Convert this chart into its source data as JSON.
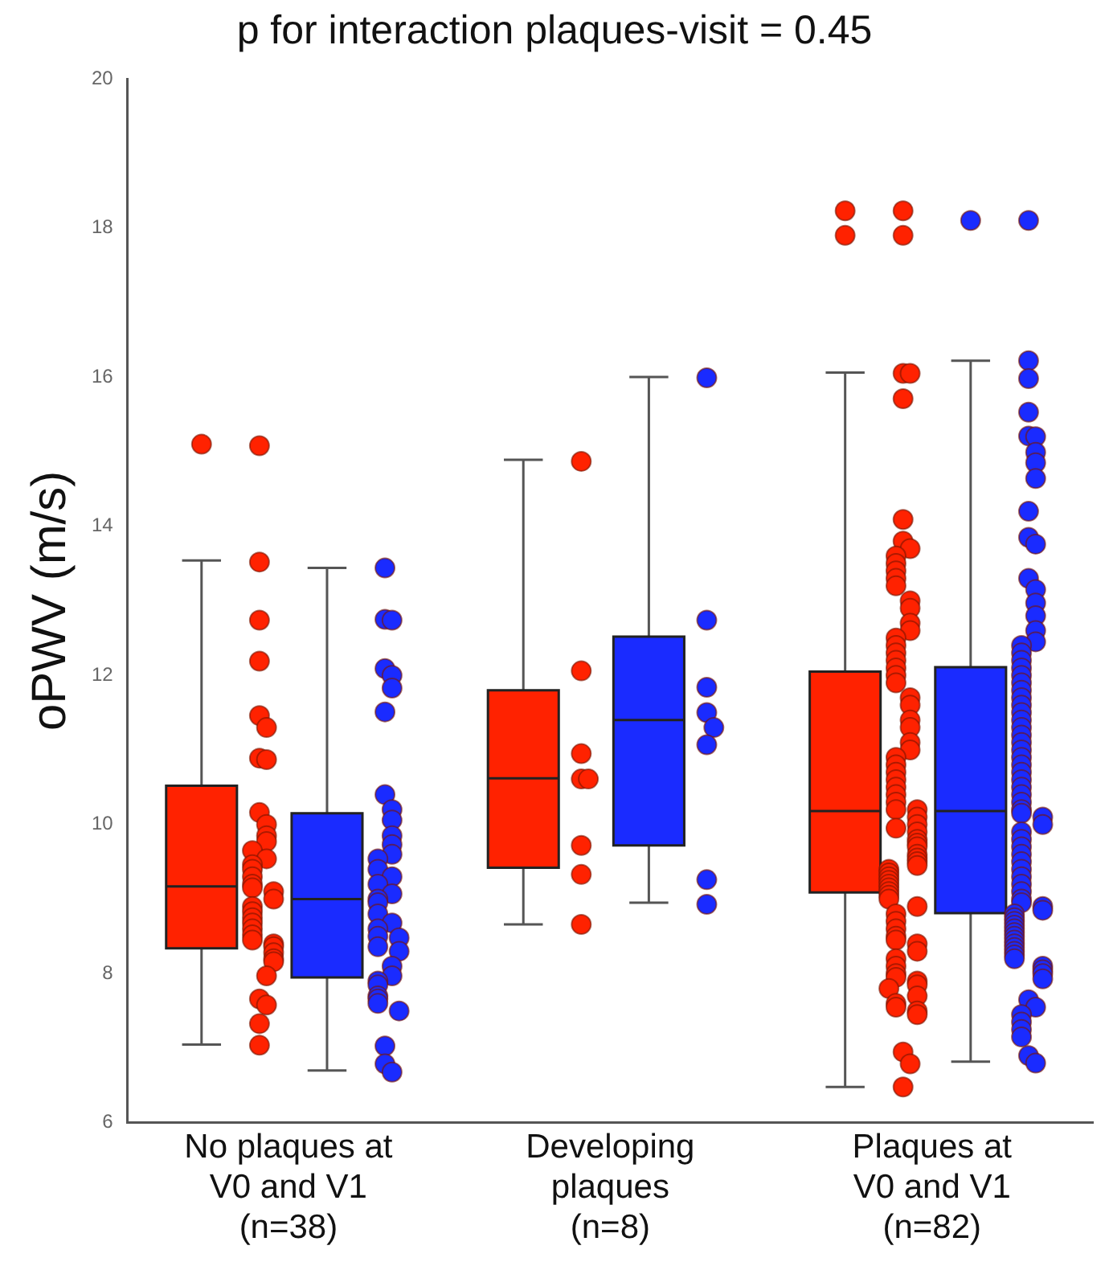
{
  "chart_data": {
    "type": "box",
    "title": "p for interaction plaques-visit = 0.45",
    "ylabel": "oPWV (m/s)",
    "categories": [
      "No plaques at\nV0 and V1\n(n=38)",
      "Developing\nplaques\n(n=8)",
      "Plaques at\nV0 and V1\n(n=82)"
    ],
    "ylim": [
      6,
      20
    ],
    "yticks": [
      6,
      8,
      10,
      12,
      14,
      16,
      18,
      20
    ],
    "grid": false,
    "legend": false,
    "marker": "circle",
    "series": [
      {
        "type": "box",
        "color": "#ff2200",
        "boxes": [
          {
            "low": 7.05,
            "q1": 8.34,
            "median": 9.17,
            "q3": 10.52,
            "high": 13.54,
            "outliers": [
              15.1
            ]
          },
          {
            "low": 8.66,
            "q1": 9.42,
            "median": 10.62,
            "q3": 11.8,
            "high": 14.89
          },
          {
            "low": 6.48,
            "q1": 9.09,
            "median": 10.18,
            "q3": 12.05,
            "high": 16.06,
            "outliers": [
              18.23,
              17.9
            ]
          }
        ]
      },
      {
        "type": "box",
        "color": "#1a2bff",
        "boxes": [
          {
            "low": 6.7,
            "q1": 7.95,
            "median": 9.0,
            "q3": 10.15,
            "high": 13.44
          },
          {
            "low": 8.95,
            "q1": 9.72,
            "median": 11.4,
            "q3": 12.52,
            "high": 16.0
          },
          {
            "low": 6.82,
            "q1": 8.81,
            "median": 10.18,
            "q3": 12.11,
            "high": 16.22,
            "outliers": [
              18.1
            ]
          }
        ]
      },
      {
        "type": "scatter",
        "color": "#ff2200",
        "x": [
          "No plaques at\nV0 and V1\n(n=38)",
          "No plaques at\nV0 and V1\n(n=38)",
          "No plaques at\nV0 and V1\n(n=38)",
          "No plaques at\nV0 and V1\n(n=38)",
          "No plaques at\nV0 and V1\n(n=38)",
          "No plaques at\nV0 and V1\n(n=38)",
          "No plaques at\nV0 and V1\n(n=38)",
          "No plaques at\nV0 and V1\n(n=38)",
          "No plaques at\nV0 and V1\n(n=38)",
          "No plaques at\nV0 and V1\n(n=38)",
          "No plaques at\nV0 and V1\n(n=38)",
          "No plaques at\nV0 and V1\n(n=38)",
          "No plaques at\nV0 and V1\n(n=38)",
          "No plaques at\nV0 and V1\n(n=38)",
          "No plaques at\nV0 and V1\n(n=38)",
          "No plaques at\nV0 and V1\n(n=38)",
          "No plaques at\nV0 and V1\n(n=38)",
          "No plaques at\nV0 and V1\n(n=38)",
          "No plaques at\nV0 and V1\n(n=38)",
          "No plaques at\nV0 and V1\n(n=38)",
          "No plaques at\nV0 and V1\n(n=38)",
          "No plaques at\nV0 and V1\n(n=38)",
          "No plaques at\nV0 and V1\n(n=38)",
          "No plaques at\nV0 and V1\n(n=38)",
          "No plaques at\nV0 and V1\n(n=38)",
          "No plaques at\nV0 and V1\n(n=38)",
          "No plaques at\nV0 and V1\n(n=38)",
          "No plaques at\nV0 and V1\n(n=38)",
          "No plaques at\nV0 and V1\n(n=38)",
          "No plaques at\nV0 and V1\n(n=38)",
          "No plaques at\nV0 and V1\n(n=38)",
          "No plaques at\nV0 and V1\n(n=38)",
          "No plaques at\nV0 and V1\n(n=38)",
          "No plaques at\nV0 and V1\n(n=38)",
          "No plaques at\nV0 and V1\n(n=38)",
          "No plaques at\nV0 and V1\n(n=38)",
          "No plaques at\nV0 and V1\n(n=38)",
          "No plaques at\nV0 and V1\n(n=38)",
          "Developing\nplaques\n(n=8)",
          "Developing\nplaques\n(n=8)",
          "Developing\nplaques\n(n=8)",
          "Developing\nplaques\n(n=8)",
          "Developing\nplaques\n(n=8)",
          "Developing\nplaques\n(n=8)",
          "Developing\nplaques\n(n=8)",
          "Developing\nplaques\n(n=8)",
          "Plaques at\nV0 and V1\n(n=82)",
          "Plaques at\nV0 and V1\n(n=82)",
          "Plaques at\nV0 and V1\n(n=82)",
          "Plaques at\nV0 and V1\n(n=82)",
          "Plaques at\nV0 and V1\n(n=82)",
          "Plaques at\nV0 and V1\n(n=82)",
          "Plaques at\nV0 and V1\n(n=82)",
          "Plaques at\nV0 and V1\n(n=82)",
          "Plaques at\nV0 and V1\n(n=82)",
          "Plaques at\nV0 and V1\n(n=82)",
          "Plaques at\nV0 and V1\n(n=82)",
          "Plaques at\nV0 and V1\n(n=82)",
          "Plaques at\nV0 and V1\n(n=82)",
          "Plaques at\nV0 and V1\n(n=82)",
          "Plaques at\nV0 and V1\n(n=82)",
          "Plaques at\nV0 and V1\n(n=82)",
          "Plaques at\nV0 and V1\n(n=82)",
          "Plaques at\nV0 and V1\n(n=82)",
          "Plaques at\nV0 and V1\n(n=82)",
          "Plaques at\nV0 and V1\n(n=82)",
          "Plaques at\nV0 and V1\n(n=82)",
          "Plaques at\nV0 and V1\n(n=82)",
          "Plaques at\nV0 and V1\n(n=82)",
          "Plaques at\nV0 and V1\n(n=82)",
          "Plaques at\nV0 and V1\n(n=82)",
          "Plaques at\nV0 and V1\n(n=82)",
          "Plaques at\nV0 and V1\n(n=82)",
          "Plaques at\nV0 and V1\n(n=82)",
          "Plaques at\nV0 and V1\n(n=82)",
          "Plaques at\nV0 and V1\n(n=82)",
          "Plaques at\nV0 and V1\n(n=82)",
          "Plaques at\nV0 and V1\n(n=82)",
          "Plaques at\nV0 and V1\n(n=82)",
          "Plaques at\nV0 and V1\n(n=82)",
          "Plaques at\nV0 and V1\n(n=82)",
          "Plaques at\nV0 and V1\n(n=82)",
          "Plaques at\nV0 and V1\n(n=82)",
          "Plaques at\nV0 and V1\n(n=82)",
          "Plaques at\nV0 and V1\n(n=82)",
          "Plaques at\nV0 and V1\n(n=82)",
          "Plaques at\nV0 and V1\n(n=82)",
          "Plaques at\nV0 and V1\n(n=82)",
          "Plaques at\nV0 and V1\n(n=82)",
          "Plaques at\nV0 and V1\n(n=82)",
          "Plaques at\nV0 and V1\n(n=82)",
          "Plaques at\nV0 and V1\n(n=82)",
          "Plaques at\nV0 and V1\n(n=82)",
          "Plaques at\nV0 and V1\n(n=82)",
          "Plaques at\nV0 and V1\n(n=82)",
          "Plaques at\nV0 and V1\n(n=82)",
          "Plaques at\nV0 and V1\n(n=82)",
          "Plaques at\nV0 and V1\n(n=82)",
          "Plaques at\nV0 and V1\n(n=82)",
          "Plaques at\nV0 and V1\n(n=82)",
          "Plaques at\nV0 and V1\n(n=82)",
          "Plaques at\nV0 and V1\n(n=82)",
          "Plaques at\nV0 and V1\n(n=82)",
          "Plaques at\nV0 and V1\n(n=82)",
          "Plaques at\nV0 and V1\n(n=82)",
          "Plaques at\nV0 and V1\n(n=82)",
          "Plaques at\nV0 and V1\n(n=82)",
          "Plaques at\nV0 and V1\n(n=82)",
          "Plaques at\nV0 and V1\n(n=82)",
          "Plaques at\nV0 and V1\n(n=82)",
          "Plaques at\nV0 and V1\n(n=82)",
          "Plaques at\nV0 and V1\n(n=82)",
          "Plaques at\nV0 and V1\n(n=82)",
          "Plaques at\nV0 and V1\n(n=82)",
          "Plaques at\nV0 and V1\n(n=82)",
          "Plaques at\nV0 and V1\n(n=82)",
          "Plaques at\nV0 and V1\n(n=82)",
          "Plaques at\nV0 and V1\n(n=82)",
          "Plaques at\nV0 and V1\n(n=82)",
          "Plaques at\nV0 and V1\n(n=82)",
          "Plaques at\nV0 and V1\n(n=82)",
          "Plaques at\nV0 and V1\n(n=82)",
          "Plaques at\nV0 and V1\n(n=82)",
          "Plaques at\nV0 and V1\n(n=82)",
          "Plaques at\nV0 and V1\n(n=82)",
          "Plaques at\nV0 and V1\n(n=82)",
          "Plaques at\nV0 and V1\n(n=82)",
          "Plaques at\nV0 and V1\n(n=82)"
        ],
        "values": [
          15.08,
          13.52,
          12.74,
          12.19,
          11.46,
          11.3,
          10.89,
          10.87,
          10.16,
          10.0,
          9.85,
          9.77,
          9.65,
          9.54,
          9.46,
          9.4,
          9.3,
          9.2,
          9.15,
          9.1,
          9.0,
          8.9,
          8.83,
          8.75,
          8.68,
          8.6,
          8.52,
          8.45,
          8.4,
          8.36,
          8.28,
          8.2,
          8.16,
          7.97,
          7.66,
          7.58,
          7.33,
          7.04,
          14.87,
          12.06,
          10.95,
          10.61,
          10.61,
          9.72,
          9.33,
          8.66,
          18.23,
          17.9,
          16.05,
          16.05,
          15.71,
          14.09,
          13.8,
          13.7,
          13.6,
          13.5,
          13.4,
          13.3,
          13.2,
          13.0,
          12.9,
          12.7,
          12.6,
          12.5,
          12.4,
          12.3,
          12.2,
          12.1,
          12.0,
          11.9,
          11.7,
          11.6,
          11.4,
          11.3,
          11.1,
          11.0,
          10.9,
          10.8,
          10.7,
          10.6,
          10.5,
          10.4,
          10.3,
          10.2,
          10.2,
          10.1,
          10.0,
          9.95,
          9.9,
          9.8,
          9.75,
          9.7,
          9.6,
          9.55,
          9.5,
          9.45,
          9.4,
          9.35,
          9.3,
          9.25,
          9.2,
          9.15,
          9.1,
          9.05,
          9.0,
          8.9,
          8.8,
          8.7,
          8.6,
          8.5,
          8.45,
          8.4,
          8.3,
          8.2,
          8.1,
          8.0,
          7.95,
          7.9,
          7.85,
          7.8,
          7.7,
          7.6,
          7.55,
          7.5,
          7.45,
          6.95,
          6.79,
          6.48
        ]
      },
      {
        "type": "scatter",
        "color": "#1a2bff",
        "x": [
          "No plaques at\nV0 and V1\n(n=38)",
          "No plaques at\nV0 and V1\n(n=38)",
          "No plaques at\nV0 and V1\n(n=38)",
          "No plaques at\nV0 and V1\n(n=38)",
          "No plaques at\nV0 and V1\n(n=38)",
          "No plaques at\nV0 and V1\n(n=38)",
          "No plaques at\nV0 and V1\n(n=38)",
          "No plaques at\nV0 and V1\n(n=38)",
          "No plaques at\nV0 and V1\n(n=38)",
          "No plaques at\nV0 and V1\n(n=38)",
          "No plaques at\nV0 and V1\n(n=38)",
          "No plaques at\nV0 and V1\n(n=38)",
          "No plaques at\nV0 and V1\n(n=38)",
          "No plaques at\nV0 and V1\n(n=38)",
          "No plaques at\nV0 and V1\n(n=38)",
          "No plaques at\nV0 and V1\n(n=38)",
          "No plaques at\nV0 and V1\n(n=38)",
          "No plaques at\nV0 and V1\n(n=38)",
          "No plaques at\nV0 and V1\n(n=38)",
          "No plaques at\nV0 and V1\n(n=38)",
          "No plaques at\nV0 and V1\n(n=38)",
          "No plaques at\nV0 and V1\n(n=38)",
          "No plaques at\nV0 and V1\n(n=38)",
          "No plaques at\nV0 and V1\n(n=38)",
          "No plaques at\nV0 and V1\n(n=38)",
          "No plaques at\nV0 and V1\n(n=38)",
          "No plaques at\nV0 and V1\n(n=38)",
          "No plaques at\nV0 and V1\n(n=38)",
          "No plaques at\nV0 and V1\n(n=38)",
          "No plaques at\nV0 and V1\n(n=38)",
          "No plaques at\nV0 and V1\n(n=38)",
          "No plaques at\nV0 and V1\n(n=38)",
          "No plaques at\nV0 and V1\n(n=38)",
          "No plaques at\nV0 and V1\n(n=38)",
          "No plaques at\nV0 and V1\n(n=38)",
          "No plaques at\nV0 and V1\n(n=38)",
          "No plaques at\nV0 and V1\n(n=38)",
          "No plaques at\nV0 and V1\n(n=38)",
          "Developing\nplaques\n(n=8)",
          "Developing\nplaques\n(n=8)",
          "Developing\nplaques\n(n=8)",
          "Developing\nplaques\n(n=8)",
          "Developing\nplaques\n(n=8)",
          "Developing\nplaques\n(n=8)",
          "Developing\nplaques\n(n=8)",
          "Developing\nplaques\n(n=8)",
          "Plaques at\nV0 and V1\n(n=82)",
          "Plaques at\nV0 and V1\n(n=82)",
          "Plaques at\nV0 and V1\n(n=82)",
          "Plaques at\nV0 and V1\n(n=82)",
          "Plaques at\nV0 and V1\n(n=82)",
          "Plaques at\nV0 and V1\n(n=82)",
          "Plaques at\nV0 and V1\n(n=82)",
          "Plaques at\nV0 and V1\n(n=82)",
          "Plaques at\nV0 and V1\n(n=82)",
          "Plaques at\nV0 and V1\n(n=82)",
          "Plaques at\nV0 and V1\n(n=82)",
          "Plaques at\nV0 and V1\n(n=82)",
          "Plaques at\nV0 and V1\n(n=82)",
          "Plaques at\nV0 and V1\n(n=82)",
          "Plaques at\nV0 and V1\n(n=82)",
          "Plaques at\nV0 and V1\n(n=82)",
          "Plaques at\nV0 and V1\n(n=82)",
          "Plaques at\nV0 and V1\n(n=82)",
          "Plaques at\nV0 and V1\n(n=82)",
          "Plaques at\nV0 and V1\n(n=82)",
          "Plaques at\nV0 and V1\n(n=82)",
          "Plaques at\nV0 and V1\n(n=82)",
          "Plaques at\nV0 and V1\n(n=82)",
          "Plaques at\nV0 and V1\n(n=82)",
          "Plaques at\nV0 and V1\n(n=82)",
          "Plaques at\nV0 and V1\n(n=82)",
          "Plaques at\nV0 and V1\n(n=82)",
          "Plaques at\nV0 and V1\n(n=82)",
          "Plaques at\nV0 and V1\n(n=82)",
          "Plaques at\nV0 and V1\n(n=82)",
          "Plaques at\nV0 and V1\n(n=82)",
          "Plaques at\nV0 and V1\n(n=82)",
          "Plaques at\nV0 and V1\n(n=82)",
          "Plaques at\nV0 and V1\n(n=82)",
          "Plaques at\nV0 and V1\n(n=82)",
          "Plaques at\nV0 and V1\n(n=82)",
          "Plaques at\nV0 and V1\n(n=82)",
          "Plaques at\nV0 and V1\n(n=82)",
          "Plaques at\nV0 and V1\n(n=82)",
          "Plaques at\nV0 and V1\n(n=82)",
          "Plaques at\nV0 and V1\n(n=82)",
          "Plaques at\nV0 and V1\n(n=82)",
          "Plaques at\nV0 and V1\n(n=82)",
          "Plaques at\nV0 and V1\n(n=82)",
          "Plaques at\nV0 and V1\n(n=82)",
          "Plaques at\nV0 and V1\n(n=82)",
          "Plaques at\nV0 and V1\n(n=82)",
          "Plaques at\nV0 and V1\n(n=82)",
          "Plaques at\nV0 and V1\n(n=82)",
          "Plaques at\nV0 and V1\n(n=82)",
          "Plaques at\nV0 and V1\n(n=82)",
          "Plaques at\nV0 and V1\n(n=82)",
          "Plaques at\nV0 and V1\n(n=82)",
          "Plaques at\nV0 and V1\n(n=82)",
          "Plaques at\nV0 and V1\n(n=82)",
          "Plaques at\nV0 and V1\n(n=82)",
          "Plaques at\nV0 and V1\n(n=82)",
          "Plaques at\nV0 and V1\n(n=82)",
          "Plaques at\nV0 and V1\n(n=82)",
          "Plaques at\nV0 and V1\n(n=82)",
          "Plaques at\nV0 and V1\n(n=82)",
          "Plaques at\nV0 and V1\n(n=82)",
          "Plaques at\nV0 and V1\n(n=82)",
          "Plaques at\nV0 and V1\n(n=82)",
          "Plaques at\nV0 and V1\n(n=82)",
          "Plaques at\nV0 and V1\n(n=82)",
          "Plaques at\nV0 and V1\n(n=82)",
          "Plaques at\nV0 and V1\n(n=82)",
          "Plaques at\nV0 and V1\n(n=82)",
          "Plaques at\nV0 and V1\n(n=82)",
          "Plaques at\nV0 and V1\n(n=82)",
          "Plaques at\nV0 and V1\n(n=82)",
          "Plaques at\nV0 and V1\n(n=82)",
          "Plaques at\nV0 and V1\n(n=82)",
          "Plaques at\nV0 and V1\n(n=82)",
          "Plaques at\nV0 and V1\n(n=82)",
          "Plaques at\nV0 and V1\n(n=82)",
          "Plaques at\nV0 and V1\n(n=82)",
          "Plaques at\nV0 and V1\n(n=82)",
          "Plaques at\nV0 and V1\n(n=82)",
          "Plaques at\nV0 and V1\n(n=82)",
          "Plaques at\nV0 and V1\n(n=82)"
        ],
        "values": [
          13.44,
          12.75,
          12.74,
          12.09,
          12.0,
          11.83,
          11.51,
          10.4,
          10.2,
          10.06,
          9.85,
          9.73,
          9.6,
          9.54,
          9.4,
          9.3,
          9.2,
          9.07,
          9.0,
          8.95,
          8.8,
          8.68,
          8.6,
          8.5,
          8.48,
          8.36,
          8.3,
          8.1,
          7.97,
          7.9,
          7.85,
          7.7,
          7.66,
          7.6,
          7.5,
          7.03,
          6.79,
          6.68,
          15.99,
          12.74,
          11.84,
          11.5,
          11.3,
          11.07,
          9.26,
          8.93,
          18.1,
          16.22,
          15.98,
          15.53,
          15.21,
          15.2,
          14.99,
          14.85,
          14.64,
          14.2,
          13.85,
          13.76,
          13.3,
          13.15,
          12.97,
          12.8,
          12.6,
          12.45,
          12.4,
          12.3,
          12.2,
          12.1,
          12.0,
          11.9,
          11.8,
          11.7,
          11.6,
          11.5,
          11.4,
          11.3,
          11.2,
          11.1,
          11.0,
          10.9,
          10.8,
          10.7,
          10.6,
          10.5,
          10.4,
          10.3,
          10.2,
          10.15,
          10.1,
          10.0,
          9.9,
          9.8,
          9.7,
          9.6,
          9.5,
          9.4,
          9.3,
          9.2,
          9.1,
          9.0,
          8.95,
          8.9,
          8.85,
          8.8,
          8.75,
          8.7,
          8.65,
          8.6,
          8.55,
          8.5,
          8.45,
          8.4,
          8.35,
          8.3,
          8.25,
          8.2,
          8.1,
          8.05,
          8.0,
          7.93,
          7.65,
          7.55,
          7.45,
          7.35,
          7.25,
          7.15,
          6.9,
          6.8
        ]
      }
    ]
  }
}
